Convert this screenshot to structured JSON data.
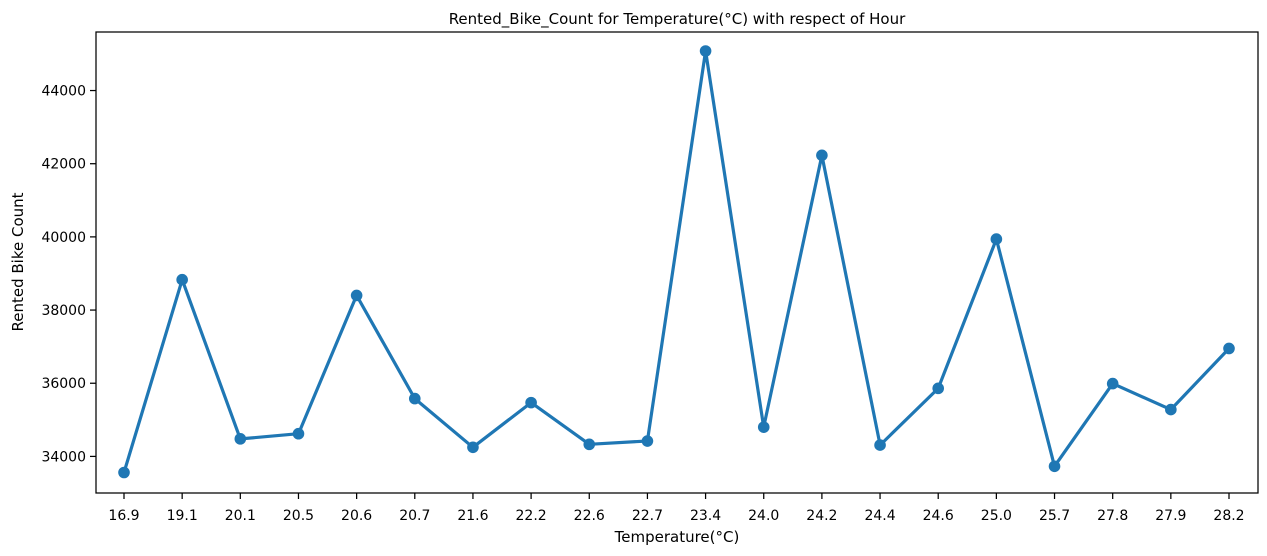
{
  "chart_data": {
    "type": "line",
    "title": "Rented_Bike_Count for Temperature(°C) with respect of Hour",
    "xlabel": "Temperature(°C)",
    "ylabel": "Rented Bike Count",
    "categories": [
      "16.9",
      "19.1",
      "20.1",
      "20.5",
      "20.6",
      "20.7",
      "21.6",
      "22.2",
      "22.6",
      "22.7",
      "23.4",
      "24.0",
      "24.2",
      "24.4",
      "24.6",
      "25.0",
      "25.7",
      "27.8",
      "27.9",
      "28.2"
    ],
    "series": [
      {
        "values": [
          33560,
          38830,
          34480,
          34620,
          38400,
          35580,
          34250,
          35470,
          34330,
          34420,
          45080,
          34800,
          42230,
          34310,
          35860,
          39940,
          33730,
          35990,
          35280,
          36950
        ]
      }
    ],
    "ylim": [
      33000,
      45600
    ],
    "yticks": [
      34000,
      36000,
      38000,
      40000,
      42000,
      44000
    ],
    "ytick_labels": [
      "34000",
      "36000",
      "38000",
      "40000",
      "42000",
      "44000"
    ],
    "color": "#1f77b4",
    "grid": false,
    "legend": "none"
  }
}
